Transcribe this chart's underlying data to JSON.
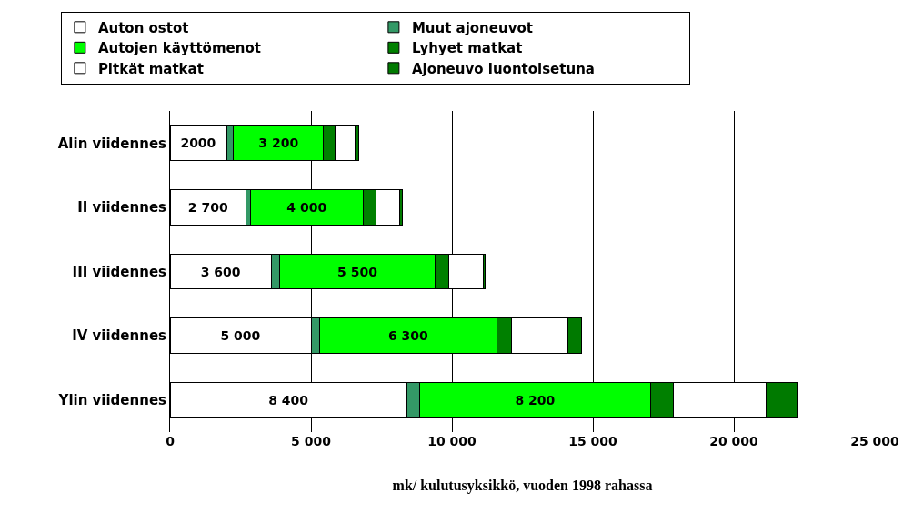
{
  "chart_data": {
    "type": "bar",
    "orientation": "horizontal",
    "stacked": true,
    "xlabel": "mk/ kulutusyksikkö, vuoden 1998 rahassa",
    "categories": [
      "Alin viidennes",
      "II viidennes",
      "III viidennes",
      "IV viidennes",
      "Ylin viidennes"
    ],
    "series": [
      {
        "name": "Auton ostot",
        "color": "#ffffff",
        "values": [
          2000,
          2700,
          3600,
          5000,
          8400
        ],
        "value_labels": [
          "2000",
          "2 700",
          "3 600",
          "5 000",
          "8 400"
        ]
      },
      {
        "name": "Muut ajoneuvot",
        "color": "#339966",
        "values": [
          250,
          150,
          300,
          300,
          450
        ]
      },
      {
        "name": "Autojen käyttömenot",
        "color": "#00ff00",
        "values": [
          3200,
          4000,
          5500,
          6300,
          8200
        ],
        "value_labels": [
          "3 200",
          "4 000",
          "5 500",
          "6 300",
          "8 200"
        ]
      },
      {
        "name": "Lyhyet matkat",
        "color": "#008000",
        "values": [
          400,
          450,
          500,
          500,
          800
        ]
      },
      {
        "name": "Pitkät matkat",
        "color": "#ffffff",
        "values": [
          700,
          850,
          1200,
          2000,
          3300
        ]
      },
      {
        "name": "Ajoneuvo luontoisetuna",
        "color": "#007a00",
        "values": [
          150,
          100,
          80,
          500,
          1100
        ]
      }
    ],
    "xlim": [
      0,
      25000
    ],
    "xticks": [
      {
        "value": 0,
        "label": "0"
      },
      {
        "value": 5000,
        "label": "5 000"
      },
      {
        "value": 10000,
        "label": "10 000"
      },
      {
        "value": 15000,
        "label": "15 000"
      },
      {
        "value": 20000,
        "label": "20 000"
      },
      {
        "value": 25000,
        "label": "25 000"
      }
    ],
    "grid": "x",
    "legend": "top"
  }
}
